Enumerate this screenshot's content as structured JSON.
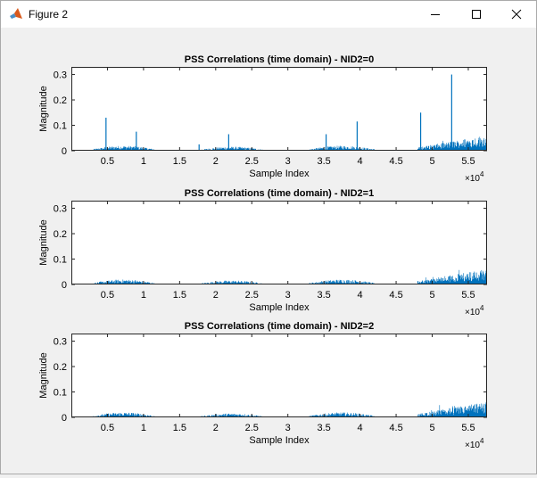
{
  "window": {
    "title": "Figure 2",
    "icon": "matlab-icon",
    "controls": [
      "minimize-icon",
      "maximize-icon",
      "close-icon"
    ]
  },
  "colors": {
    "series": "#0072bd",
    "axes": "#262626",
    "plot_bg": "#ffffff",
    "figure_bg": "#f0f0f0",
    "text": "#000000"
  },
  "chart_data": [
    {
      "type": "line",
      "title": "PSS Correlations (time domain) - NID2=0",
      "xlabel": "Sample Index",
      "ylabel": "Magnitude",
      "x_exponent": "×10^4",
      "xlim": [
        0,
        57600
      ],
      "ylim": [
        0,
        0.33
      ],
      "xticks": [
        5000,
        10000,
        15000,
        20000,
        25000,
        30000,
        35000,
        40000,
        45000,
        50000,
        55000
      ],
      "xtick_labels": [
        "0.5",
        "1",
        "1.5",
        "2",
        "2.5",
        "3",
        "3.5",
        "4",
        "4.5",
        "5",
        "5.5"
      ],
      "yticks": [
        0,
        0.1,
        0.2,
        0.3
      ],
      "ytick_labels": [
        "0",
        "0.1",
        "0.2",
        "0.3"
      ],
      "noise_segments": [
        {
          "x_start": 3000,
          "x_end": 11500,
          "level": 0.015
        },
        {
          "x_start": 18000,
          "x_end": 26500,
          "level": 0.012
        },
        {
          "x_start": 33000,
          "x_end": 42000,
          "level": 0.015
        },
        {
          "x_start": 48000,
          "x_end": 57500,
          "level": 0.045
        }
      ],
      "spikes": [
        {
          "x": 4800,
          "y": 0.13
        },
        {
          "x": 9000,
          "y": 0.075
        },
        {
          "x": 17700,
          "y": 0.025
        },
        {
          "x": 21800,
          "y": 0.065
        },
        {
          "x": 35300,
          "y": 0.065
        },
        {
          "x": 39600,
          "y": 0.115
        },
        {
          "x": 48400,
          "y": 0.15
        },
        {
          "x": 52700,
          "y": 0.3
        }
      ]
    },
    {
      "type": "line",
      "title": "PSS Correlations (time domain) - NID2=1",
      "xlabel": "Sample Index",
      "ylabel": "Magnitude",
      "x_exponent": "×10^4",
      "xlim": [
        0,
        57600
      ],
      "ylim": [
        0,
        0.33
      ],
      "xticks": [
        5000,
        10000,
        15000,
        20000,
        25000,
        30000,
        35000,
        40000,
        45000,
        50000,
        55000
      ],
      "xtick_labels": [
        "0.5",
        "1",
        "1.5",
        "2",
        "2.5",
        "3",
        "3.5",
        "4",
        "4.5",
        "5",
        "5.5"
      ],
      "yticks": [
        0,
        0.1,
        0.2,
        0.3
      ],
      "ytick_labels": [
        "0",
        "0.1",
        "0.2",
        "0.3"
      ],
      "noise_segments": [
        {
          "x_start": 3000,
          "x_end": 11500,
          "level": 0.015
        },
        {
          "x_start": 18000,
          "x_end": 26500,
          "level": 0.012
        },
        {
          "x_start": 33000,
          "x_end": 42000,
          "level": 0.015
        },
        {
          "x_start": 48000,
          "x_end": 57500,
          "level": 0.045
        }
      ],
      "spikes": []
    },
    {
      "type": "line",
      "title": "PSS Correlations (time domain) - NID2=2",
      "xlabel": "Sample Index",
      "ylabel": "Magnitude",
      "x_exponent": "×10^4",
      "xlim": [
        0,
        57600
      ],
      "ylim": [
        0,
        0.33
      ],
      "xticks": [
        5000,
        10000,
        15000,
        20000,
        25000,
        30000,
        35000,
        40000,
        45000,
        50000,
        55000
      ],
      "xtick_labels": [
        "0.5",
        "1",
        "1.5",
        "2",
        "2.5",
        "3",
        "3.5",
        "4",
        "4.5",
        "5",
        "5.5"
      ],
      "yticks": [
        0,
        0.1,
        0.2,
        0.3
      ],
      "ytick_labels": [
        "0",
        "0.1",
        "0.2",
        "0.3"
      ],
      "noise_segments": [
        {
          "x_start": 3000,
          "x_end": 11500,
          "level": 0.015
        },
        {
          "x_start": 18000,
          "x_end": 26500,
          "level": 0.012
        },
        {
          "x_start": 33000,
          "x_end": 42000,
          "level": 0.015
        },
        {
          "x_start": 48000,
          "x_end": 57500,
          "level": 0.045
        }
      ],
      "spikes": []
    }
  ]
}
